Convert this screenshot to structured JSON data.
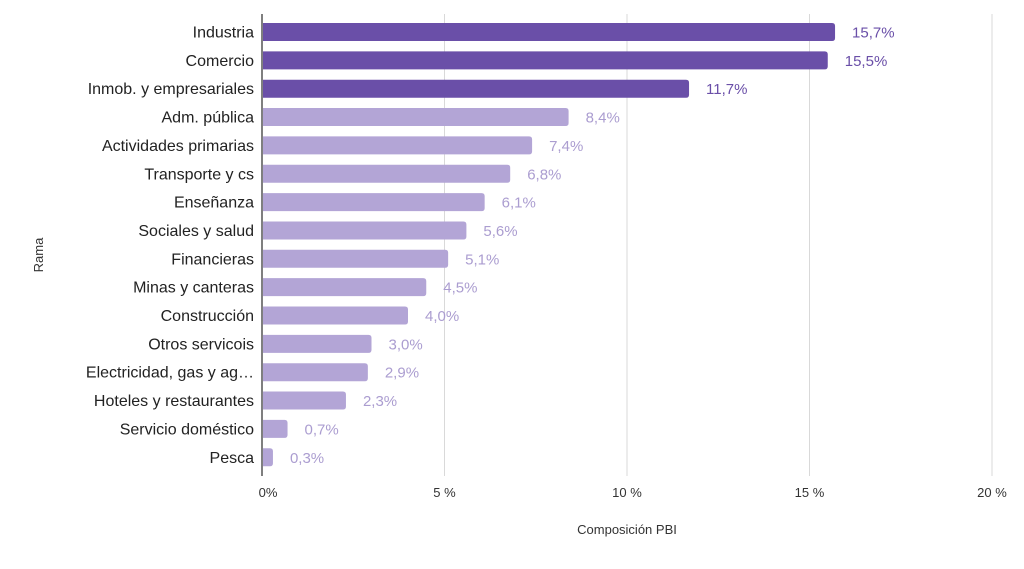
{
  "chart_data": {
    "type": "bar",
    "orientation": "horizontal",
    "categories": [
      "Industria",
      "Comercio",
      "Inmob. y empresariales",
      "Adm. pública",
      "Actividades primarias",
      "Transporte y cs",
      "Enseñanza",
      "Sociales y salud",
      "Financieras",
      "Minas y canteras",
      "Construcción",
      "Otros servicois",
      "Electricidad, gas y ag…",
      "Hoteles y restaurantes",
      "Servicio doméstico",
      "Pesca"
    ],
    "values": [
      15.7,
      15.5,
      11.7,
      8.4,
      7.4,
      6.8,
      6.1,
      5.6,
      5.1,
      4.5,
      4.0,
      3.0,
      2.9,
      2.3,
      0.7,
      0.3
    ],
    "value_labels": [
      "15,7%",
      "15,5%",
      "11,7%",
      "8,4%",
      "7,4%",
      "6,8%",
      "6,1%",
      "5,6%",
      "5,1%",
      "4,5%",
      "4,0%",
      "3,0%",
      "2,9%",
      "2,3%",
      "0,7%",
      "0,3%"
    ],
    "highlight_count": 3,
    "xlabel": "Composición PBI",
    "ylabel": "Rama",
    "xlim": [
      0,
      20
    ],
    "xticks": [
      0,
      5,
      10,
      15,
      20
    ],
    "xtick_labels": [
      "0%",
      "5 %",
      "10 %",
      "15 %",
      "20 %"
    ],
    "grid": true,
    "colors": {
      "highlight": "#6a4fa8",
      "normal": "#b3a5d6",
      "highlight_text": "#6a4fa8",
      "normal_text": "#ab9dd0",
      "grid": "#d9d9d9",
      "axis": "#555555"
    }
  }
}
